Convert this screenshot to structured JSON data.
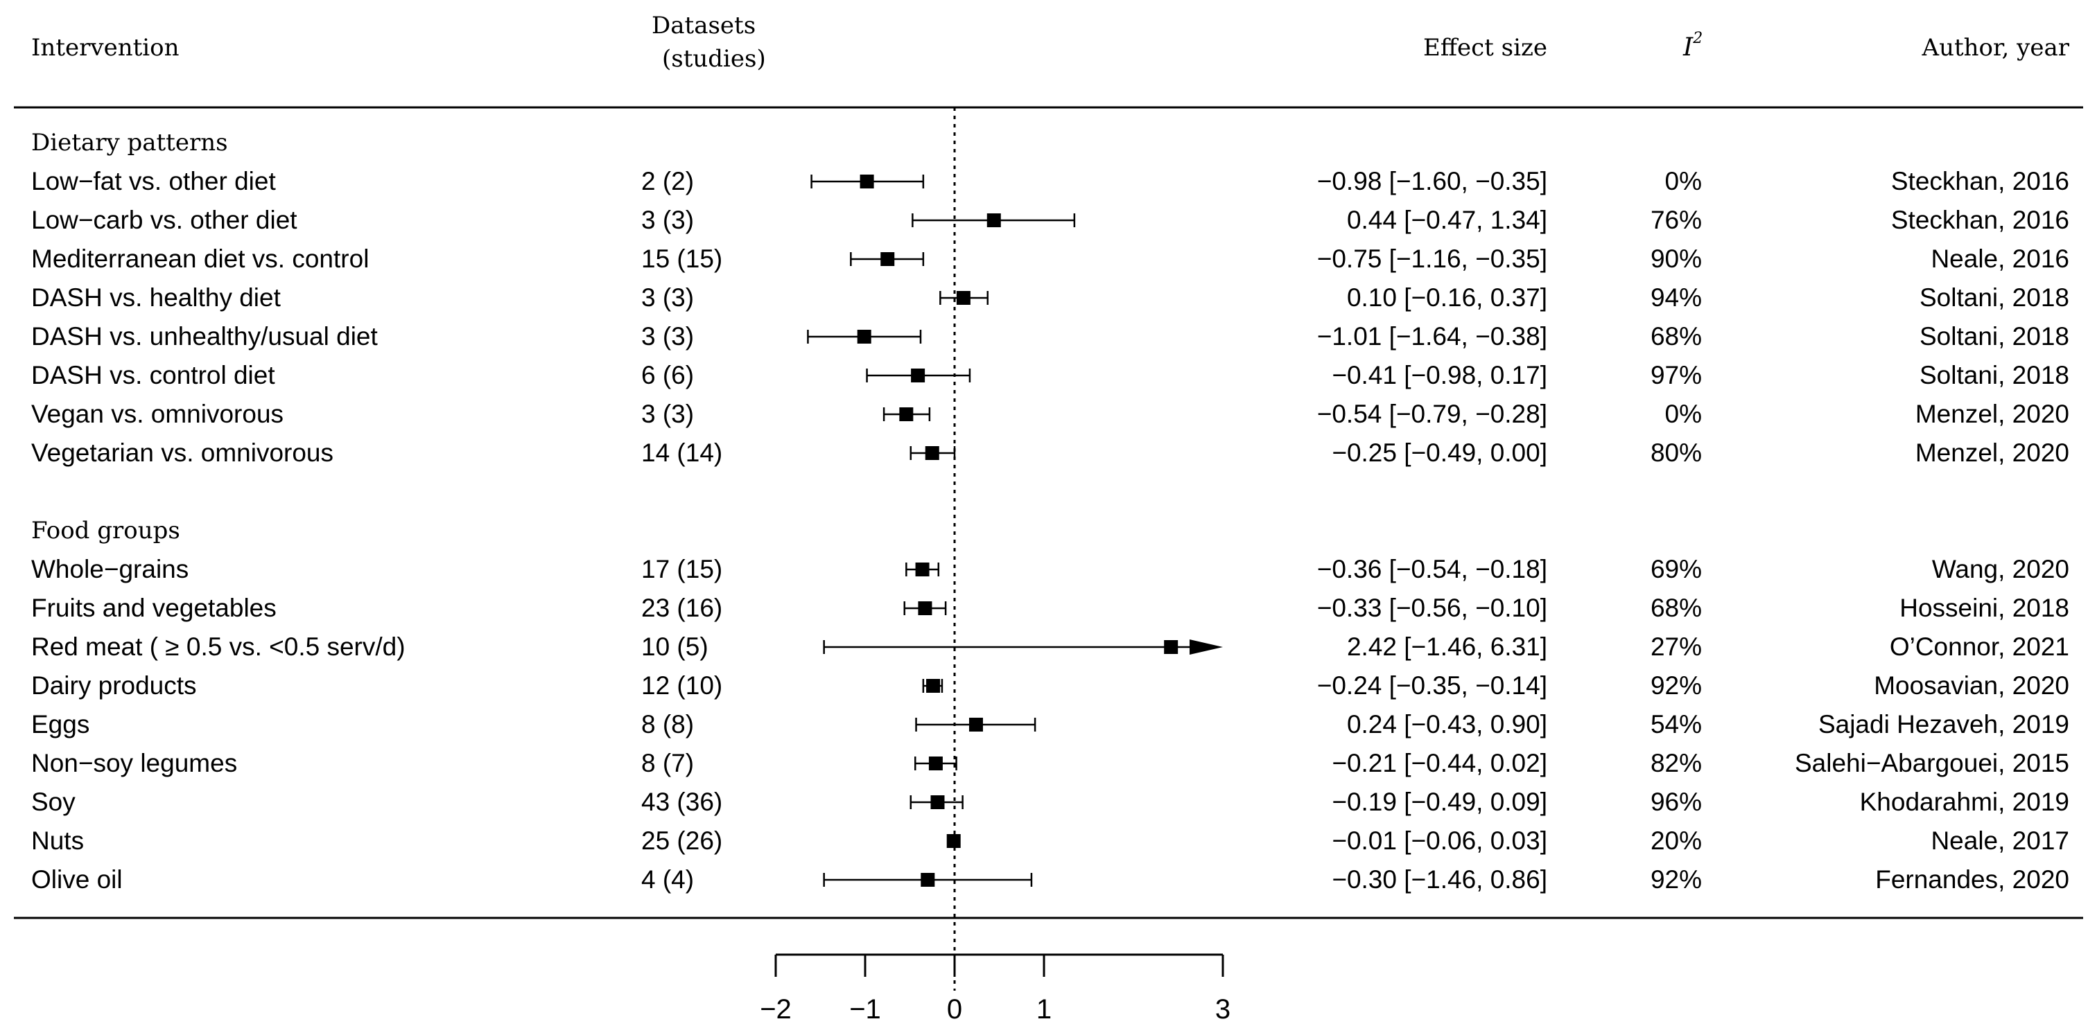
{
  "headers": {
    "intervention": "Intervention",
    "datasets_line1": "Datasets",
    "datasets_line2": "(studies)",
    "effect": "Effect size",
    "i2_letter": "I",
    "i2_sup": "2",
    "author": "Author, year"
  },
  "chart_data": {
    "type": "forest",
    "xlim": [
      -2,
      3
    ],
    "xticks": [
      "−2",
      "−1",
      "0",
      "1",
      "3"
    ],
    "tick_values": [
      -2,
      -1,
      0,
      1,
      3
    ],
    "reference_line": 0,
    "groups": [
      {
        "label": "Dietary patterns",
        "rows": [
          {
            "label": "Low−fat vs. other diet",
            "datasets": "2 (2)",
            "est": -0.98,
            "lo": -1.6,
            "hi": -0.35,
            "effect_text": "−0.98 [−1.60, −0.35]",
            "i2": "0%",
            "author": "Steckhan, 2016"
          },
          {
            "label": "Low−carb vs. other diet",
            "datasets": "3 (3)",
            "est": 0.44,
            "lo": -0.47,
            "hi": 1.34,
            "effect_text": "0.44 [−0.47, 1.34]",
            "i2": "76%",
            "author": "Steckhan, 2016"
          },
          {
            "label": "Mediterranean diet vs. control",
            "datasets": "15 (15)",
            "est": -0.75,
            "lo": -1.16,
            "hi": -0.35,
            "effect_text": "−0.75 [−1.16, −0.35]",
            "i2": "90%",
            "author": "Neale, 2016"
          },
          {
            "label": "DASH vs. healthy diet",
            "datasets": "3 (3)",
            "est": 0.1,
            "lo": -0.16,
            "hi": 0.37,
            "effect_text": "0.10 [−0.16, 0.37]",
            "i2": "94%",
            "author": "Soltani, 2018"
          },
          {
            "label": "DASH vs. unhealthy/usual diet",
            "datasets": "3 (3)",
            "est": -1.01,
            "lo": -1.64,
            "hi": -0.38,
            "effect_text": "−1.01 [−1.64, −0.38]",
            "i2": "68%",
            "author": "Soltani, 2018"
          },
          {
            "label": "DASH vs. control diet",
            "datasets": "6 (6)",
            "est": -0.41,
            "lo": -0.98,
            "hi": 0.17,
            "effect_text": "−0.41 [−0.98, 0.17]",
            "i2": "97%",
            "author": "Soltani, 2018"
          },
          {
            "label": "Vegan vs. omnivorous",
            "datasets": "3 (3)",
            "est": -0.54,
            "lo": -0.79,
            "hi": -0.28,
            "effect_text": "−0.54 [−0.79, −0.28]",
            "i2": "0%",
            "author": "Menzel, 2020"
          },
          {
            "label": "Vegetarian vs. omnivorous",
            "datasets": "14 (14)",
            "est": -0.25,
            "lo": -0.49,
            "hi": 0.0,
            "effect_text": "−0.25 [−0.49, 0.00]",
            "i2": "80%",
            "author": "Menzel, 2020"
          }
        ]
      },
      {
        "label": "Food groups",
        "rows": [
          {
            "label": "Whole−grains",
            "datasets": "17 (15)",
            "est": -0.36,
            "lo": -0.54,
            "hi": -0.18,
            "effect_text": "−0.36 [−0.54, −0.18]",
            "i2": "69%",
            "author": "Wang, 2020"
          },
          {
            "label": "Fruits and vegetables",
            "datasets": "23 (16)",
            "est": -0.33,
            "lo": -0.56,
            "hi": -0.1,
            "effect_text": "−0.33 [−0.56, −0.10]",
            "i2": "68%",
            "author": "Hosseini, 2018"
          },
          {
            "label": "Red meat ( ≥ 0.5 vs. <0.5 serv/d)",
            "datasets": "10 (5)",
            "est": 2.42,
            "lo": -1.46,
            "hi": 6.31,
            "effect_text": "2.42 [−1.46, 6.31]",
            "i2": "27%",
            "author": "O’Connor, 2021",
            "arrow": true
          },
          {
            "label": "Dairy products",
            "datasets": "12 (10)",
            "est": -0.24,
            "lo": -0.35,
            "hi": -0.14,
            "effect_text": "−0.24 [−0.35, −0.14]",
            "i2": "92%",
            "author": "Moosavian, 2020"
          },
          {
            "label": "Eggs",
            "datasets": "8 (8)",
            "est": 0.24,
            "lo": -0.43,
            "hi": 0.9,
            "effect_text": "0.24 [−0.43, 0.90]",
            "i2": "54%",
            "author": "Sajadi Hezaveh, 2019"
          },
          {
            "label": "Non−soy legumes",
            "datasets": "8 (7)",
            "est": -0.21,
            "lo": -0.44,
            "hi": 0.02,
            "effect_text": "−0.21 [−0.44, 0.02]",
            "i2": "82%",
            "author": "Salehi−Abargouei, 2015"
          },
          {
            "label": "Soy",
            "datasets": "43 (36)",
            "est": -0.19,
            "lo": -0.49,
            "hi": 0.09,
            "effect_text": "−0.19 [−0.49, 0.09]",
            "i2": "96%",
            "author": "Khodarahmi, 2019"
          },
          {
            "label": "Nuts",
            "datasets": "25 (26)",
            "est": -0.01,
            "lo": -0.06,
            "hi": 0.03,
            "effect_text": "−0.01 [−0.06, 0.03]",
            "i2": "20%",
            "author": "Neale, 2017"
          },
          {
            "label": "Olive oil",
            "datasets": "4 (4)",
            "est": -0.3,
            "lo": -1.46,
            "hi": 0.86,
            "effect_text": "−0.30 [−1.46, 0.86]",
            "i2": "92%",
            "author": "Fernandes, 2020"
          }
        ]
      }
    ]
  }
}
